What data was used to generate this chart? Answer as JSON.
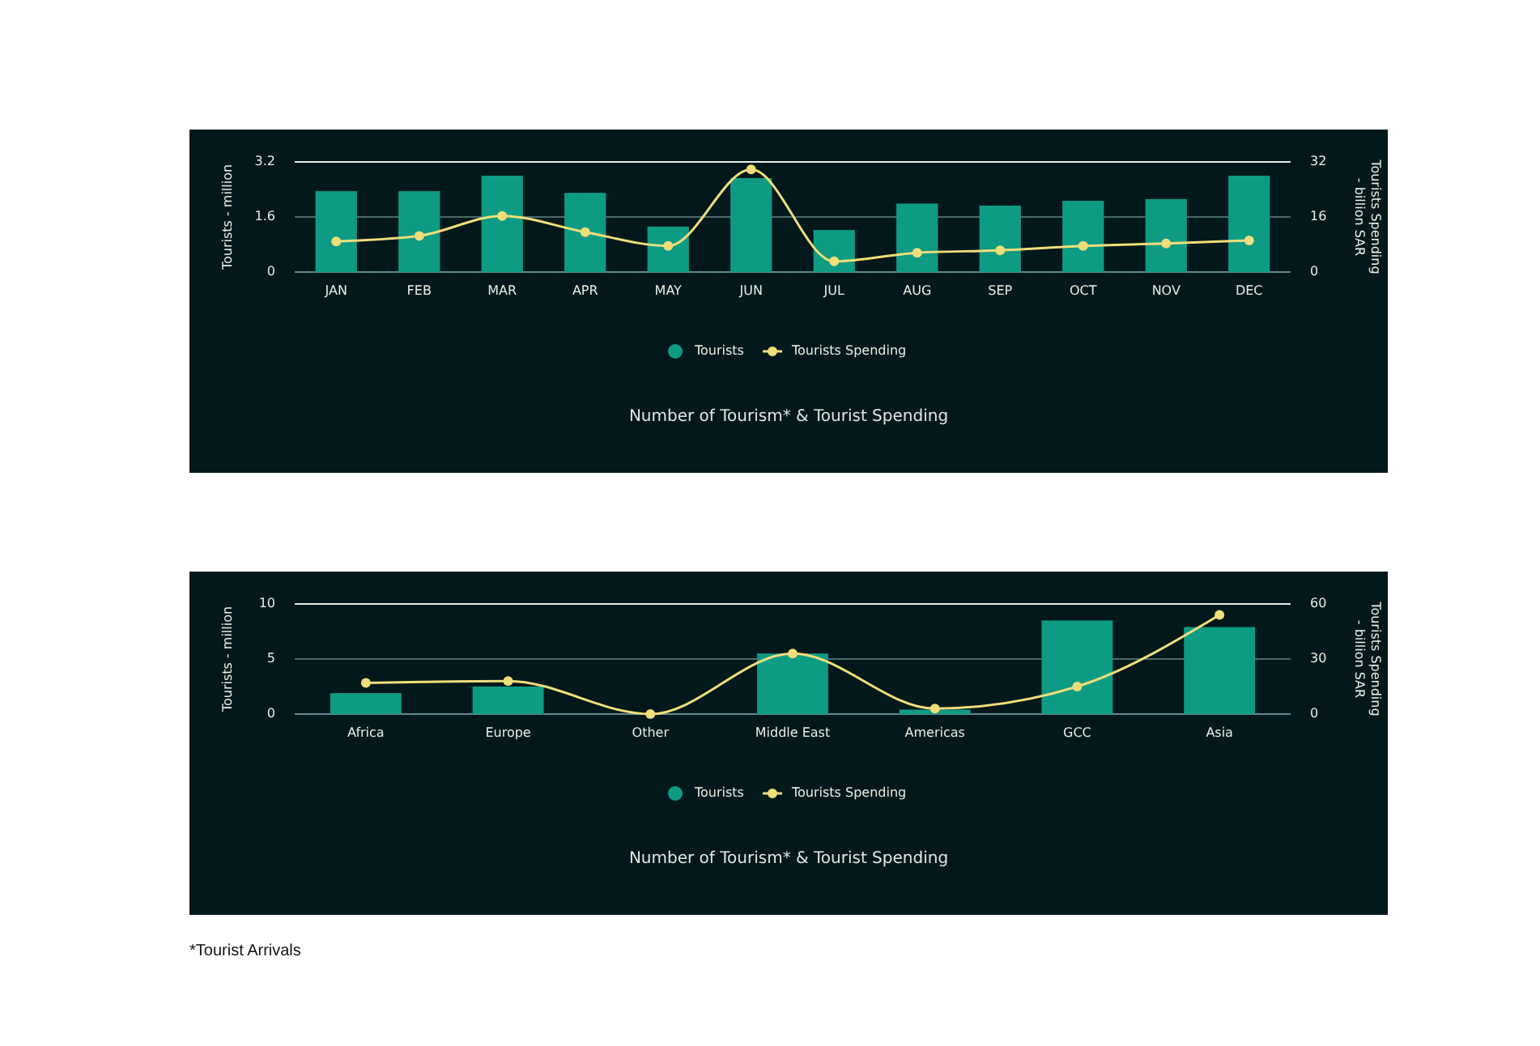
{
  "chart_data": [
    {
      "type": "bar",
      "title": "Number of Tourism* & Tourist Spending",
      "ylabel": "Tourists - million",
      "y2label": "Tourists Spending - billion SAR",
      "categories": [
        "JAN",
        "FEB",
        "MAR",
        "APR",
        "MAY",
        "JUN",
        "JUL",
        "AUG",
        "SEP",
        "OCT",
        "NOV",
        "DEC"
      ],
      "series": [
        {
          "name": "Tourists",
          "color": "#0e9b84",
          "values": [
            2.35,
            2.35,
            2.8,
            2.3,
            1.32,
            2.73,
            1.22,
            1.99,
            1.93,
            2.07,
            2.12,
            2.8
          ]
        },
        {
          "name": "Tourists Spending",
          "type": "line",
          "axis": "y2",
          "color": "#f0de7a",
          "values": [
            8.9,
            10.5,
            16.3,
            11.6,
            7.6,
            29.8,
            3.1,
            5.6,
            6.3,
            7.6,
            8.3,
            9.2
          ]
        }
      ],
      "ylim": [
        0,
        3.2
      ],
      "yticks": [
        0,
        1.6,
        3.2
      ],
      "y2lim": [
        0,
        32
      ],
      "y2ticks": [
        0,
        16,
        32
      ],
      "grid": "y",
      "legend": "bottom",
      "marker": "circle"
    },
    {
      "type": "bar",
      "title": "Number of Tourism* & Tourist Spending",
      "ylabel": "Tourists - million",
      "y2label": "Tourists Spending - billion SAR",
      "categories": [
        "Africa",
        "Europe",
        "Other",
        "Middle East",
        "Americas",
        "GCC",
        "Asia"
      ],
      "series": [
        {
          "name": "Tourists",
          "color": "#0e9b84",
          "values": [
            1.9,
            2.5,
            0,
            5.5,
            0.4,
            8.5,
            7.9
          ]
        },
        {
          "name": "Tourists Spending",
          "type": "line",
          "axis": "y2",
          "color": "#f0de7a",
          "values": [
            17,
            18,
            0,
            33,
            3,
            15,
            54
          ]
        }
      ],
      "ylim": [
        0,
        10
      ],
      "yticks": [
        0,
        5,
        10
      ],
      "y2lim": [
        0,
        60
      ],
      "y2ticks": [
        0,
        30,
        60
      ],
      "grid": "y",
      "legend": "bottom",
      "marker": "circle",
      "annotations": [
        "*Tourist Arrivals"
      ]
    }
  ]
}
